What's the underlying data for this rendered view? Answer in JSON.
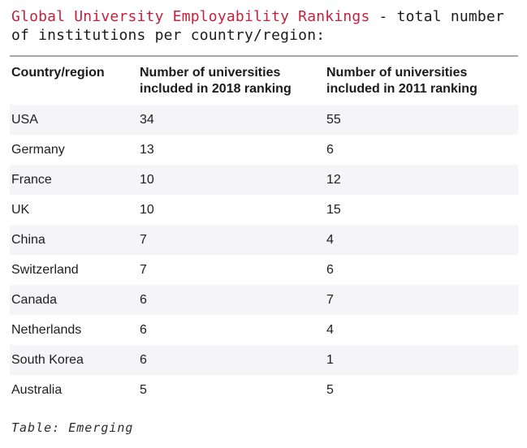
{
  "page": {
    "title": {
      "highlight": "Global University Employability Rankings",
      "rest": " - total number\nof institutions per country/region:"
    },
    "table": {
      "columns": [
        "Country/region",
        "Number of universities included in 2018 ranking",
        "Number of universities included in 2011 ranking"
      ],
      "rows": [
        {
          "country": "USA",
          "y2018": "34",
          "y2011": "55"
        },
        {
          "country": "Germany",
          "y2018": "13",
          "y2011": "6"
        },
        {
          "country": "France",
          "y2018": "10",
          "y2011": "12"
        },
        {
          "country": "UK",
          "y2018": "10",
          "y2011": "15"
        },
        {
          "country": "China",
          "y2018": "7",
          "y2011": "4"
        },
        {
          "country": "Switzerland",
          "y2018": "7",
          "y2011": "6"
        },
        {
          "country": "Canada",
          "y2018": "6",
          "y2011": "7"
        },
        {
          "country": "Netherlands",
          "y2018": "6",
          "y2011": "4"
        },
        {
          "country": "South Korea",
          "y2018": "6",
          "y2011": "1"
        },
        {
          "country": "Australia",
          "y2018": "5",
          "y2011": "5"
        }
      ]
    },
    "caption": "Table: Emerging"
  },
  "colors": {
    "title_red": "#c2223c",
    "stripe_bg": "#f5f4f6",
    "rule": "#a8a8a8",
    "text_dark": "#1b1b1d"
  }
}
